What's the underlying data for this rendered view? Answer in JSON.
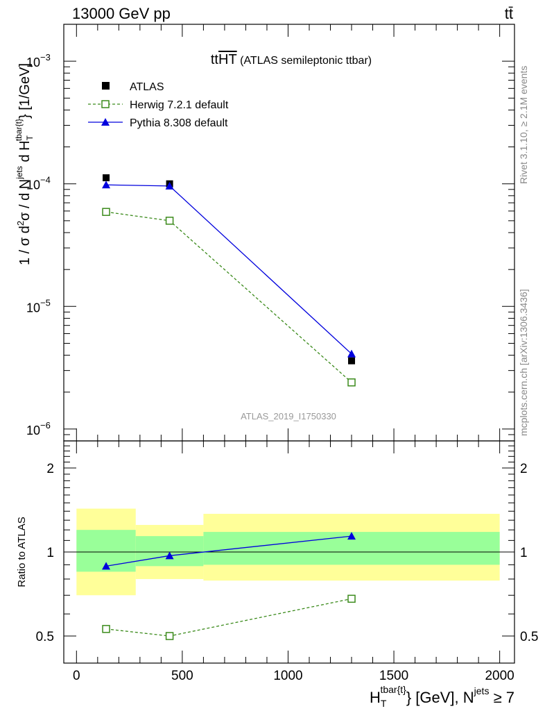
{
  "header": {
    "left_label": "13000 GeV pp",
    "right_label": "tt̄"
  },
  "main_panel": {
    "title_prefix": "tt",
    "title_overline": "HT",
    "title_suffix": " (ATLAS semileptonic ttbar)",
    "analysis_label": "ATLAS_2019_I1750330",
    "ylabel": {
      "p1": "1 / σ d",
      "sup2": "2",
      "p2": "σ / d N",
      "sup_jets": "jets",
      "p3": " d H",
      "sub_T": "T",
      "sup_tbar": "tbar{t}",
      "p4": "} [1/GeV]"
    },
    "y_ticks": [
      {
        "base": "10",
        "exp": "−6",
        "value": 1e-06
      },
      {
        "base": "10",
        "exp": "−5",
        "value": 1e-05
      },
      {
        "base": "10",
        "exp": "−4",
        "value": 0.0001
      },
      {
        "base": "10",
        "exp": "−3",
        "value": 0.001
      }
    ]
  },
  "legend": [
    {
      "label": "ATLAS",
      "color": "#000000",
      "marker": "filled-square",
      "line": "none"
    },
    {
      "label": "Herwig 7.2.1 default",
      "color": "#3a8a1a",
      "marker": "open-square",
      "line": "dashed"
    },
    {
      "label": "Pythia 8.308 default",
      "color": "#0000dd",
      "marker": "filled-triangle",
      "line": "solid"
    }
  ],
  "ratio_panel": {
    "ylabel": "Ratio to ATLAS",
    "y_ticks": [
      {
        "label": "0.5",
        "value": 0.5
      },
      {
        "label": "1",
        "value": 1
      },
      {
        "label": "2",
        "value": 2
      }
    ]
  },
  "x_axis": {
    "label_H": "H",
    "label_sub": "T",
    "label_sup": "tbar{t}",
    "label_mid": "} [GeV], N",
    "label_sup2": "jets",
    "label_end": " ≥ 7",
    "ticks": [
      "0",
      "500",
      "1000",
      "1500",
      "2000"
    ]
  },
  "side_labels": {
    "rivet": "Rivet 3.1.10, ≥ 2.1M events",
    "mcplots": "mcplots.cern.ch [arXiv:1306.3436]"
  },
  "colors": {
    "band_inner": "#99ff99",
    "band_outer": "#ffff99",
    "herwig": "#3a8a1a",
    "pythia": "#0000dd",
    "data": "#000000"
  },
  "chart_data": {
    "type": "scatter",
    "xlabel": "H_T^{tbar{t}} [GeV], N^{jets} ≥ 7",
    "ylabel": "1 / σ d²σ / d N^{jets} d H_T^{tbar{t}} [1/GeV]",
    "x_range": [
      -60,
      2070
    ],
    "y_range": [
      8e-07,
      0.002
    ],
    "y_scale": "log",
    "bins": [
      {
        "low": 0,
        "high": 280,
        "x": 140
      },
      {
        "low": 280,
        "high": 600,
        "x": 440
      },
      {
        "low": 600,
        "high": 2000,
        "x": 1300
      }
    ],
    "series": [
      {
        "name": "ATLAS",
        "y": [
          0.000112,
          0.0001,
          3.6e-06
        ]
      },
      {
        "name": "Herwig 7.2.1 default",
        "y": [
          5.9e-05,
          5e-05,
          2.4e-06
        ]
      },
      {
        "name": "Pythia 8.308 default",
        "y": [
          9.8e-05,
          9.6e-05,
          4.1e-06
        ]
      }
    ],
    "ratio": {
      "ylabel": "Ratio to ATLAS",
      "y_range": [
        0.4,
        2.5
      ],
      "y_scale": "log",
      "herwig": [
        0.53,
        0.5,
        0.68
      ],
      "pythia": [
        0.89,
        0.97,
        1.14
      ],
      "band_inner": [
        [
          0.85,
          1.2
        ],
        [
          0.89,
          1.14
        ],
        [
          0.9,
          1.18
        ]
      ],
      "band_outer": [
        [
          0.7,
          1.43
        ],
        [
          0.8,
          1.25
        ],
        [
          0.79,
          1.37
        ]
      ]
    }
  }
}
